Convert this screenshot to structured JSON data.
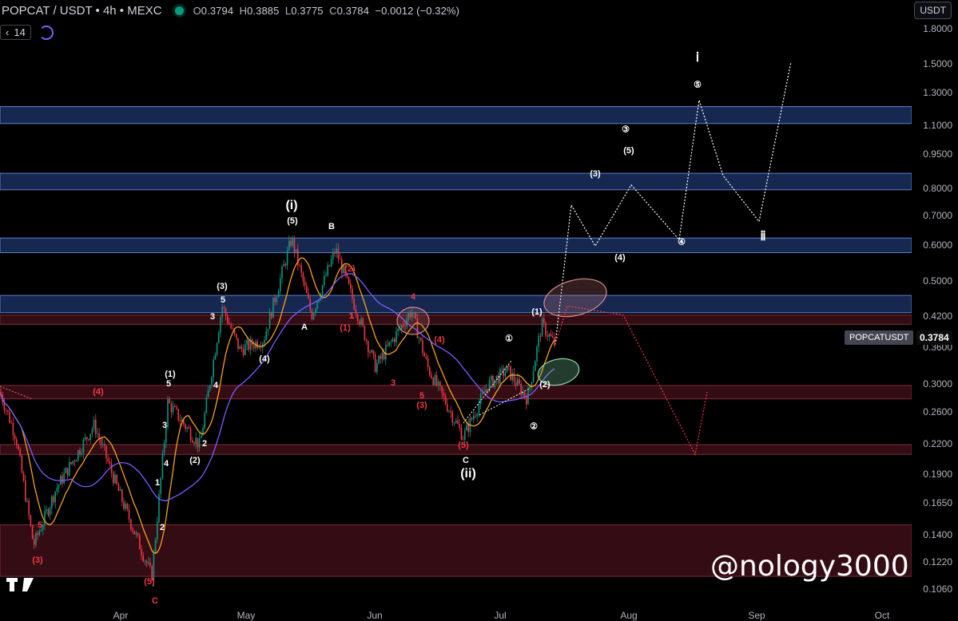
{
  "header": {
    "symbol": "POPCAT / USDT • 4h • MEXC",
    "open_label": "O",
    "open": "0.3794",
    "high_label": "H",
    "high": "0.3885",
    "low_label": "L",
    "low": "0.3775",
    "close_label": "C",
    "close": "0.3784",
    "change": "−0.0012 (−0.32%)"
  },
  "indicator": {
    "value": "14",
    "icon": "chevron-down-icon"
  },
  "currency": "USDT",
  "price_axis": [
    "1.8000",
    "1.5000",
    "1.3000",
    "1.1000",
    "0.9500",
    "0.8000",
    "0.7000",
    "0.6000",
    "0.5000",
    "0.4200",
    "0.3600",
    "0.3000",
    "0.2600",
    "0.2200",
    "0.1900",
    "0.1650",
    "0.1400",
    "0.1220",
    "0.1060"
  ],
  "time_axis": [
    "Apr",
    "May",
    "Jun",
    "Jul",
    "Aug",
    "Sep",
    "Oct"
  ],
  "last_price": {
    "symbol": "POPCATUSDT",
    "price": "0.3784"
  },
  "watermark": "@nology3000",
  "colors": {
    "up": "#089981",
    "down": "#f23645",
    "blue_zone": "#2a5caa",
    "red_zone": "#7a1f2e",
    "ema": "#f7a21b",
    "ma": "#7b5cff",
    "projection_up": "#ffffff",
    "projection_down": "#f23645"
  },
  "wave_labels": {
    "white": [
      "(i)",
      "(5)",
      "B",
      "(3)",
      "5",
      "3",
      "A",
      "(4)",
      "(1)",
      "5",
      "1",
      "4",
      "3",
      "2",
      "(2)",
      "4",
      "1",
      "2",
      "①",
      "(1)",
      "(2)",
      "②",
      "(3)",
      "③",
      "(5)",
      "(4)",
      "④",
      "ⅰ",
      "⑤",
      "ⅱ",
      "C",
      "(ii)"
    ],
    "red": [
      "(4)",
      "5",
      "(3)",
      "(5)",
      "C",
      "(2)",
      "1",
      "(1)",
      "4",
      "(4)",
      "3",
      "5",
      "(3)",
      "(5)"
    ]
  },
  "chart_data": {
    "type": "candlestick",
    "symbol": "POPCAT/USDT",
    "interval": "4h",
    "price_path": [
      [
        0,
        0.3
      ],
      [
        20,
        0.24
      ],
      [
        42,
        0.14
      ],
      [
        70,
        0.185
      ],
      [
        118,
        0.255
      ],
      [
        150,
        0.18
      ],
      [
        190,
        0.12
      ],
      [
        210,
        0.285
      ],
      [
        250,
        0.23
      ],
      [
        278,
        0.46
      ],
      [
        300,
        0.37
      ],
      [
        330,
        0.39
      ],
      [
        365,
        0.645
      ],
      [
        390,
        0.44
      ],
      [
        420,
        0.61
      ],
      [
        450,
        0.43
      ],
      [
        470,
        0.34
      ],
      [
        515,
        0.45
      ],
      [
        535,
        0.34
      ],
      [
        580,
        0.24
      ],
      [
        610,
        0.31
      ],
      [
        635,
        0.335
      ],
      [
        660,
        0.29
      ],
      [
        678,
        0.42
      ],
      [
        695,
        0.3784
      ]
    ],
    "projection_bull": [
      [
        695,
        0.38
      ],
      [
        715,
        0.76
      ],
      [
        745,
        0.62
      ],
      [
        790,
        0.84
      ],
      [
        850,
        0.64
      ],
      [
        875,
        1.28
      ],
      [
        905,
        0.88
      ],
      [
        950,
        0.7
      ],
      [
        990,
        1.55
      ]
    ],
    "projection_bear": [
      [
        695,
        0.38
      ],
      [
        710,
        0.46
      ],
      [
        780,
        0.44
      ],
      [
        870,
        0.22
      ],
      [
        885,
        0.3
      ]
    ],
    "blue_zones": [
      [
        1.14,
        1.24
      ],
      [
        0.82,
        0.89
      ],
      [
        0.6,
        0.645
      ],
      [
        0.445,
        0.485
      ]
    ],
    "red_zones": [
      [
        0.42,
        0.44
      ],
      [
        0.29,
        0.31
      ],
      [
        0.22,
        0.231
      ],
      [
        0.12,
        0.155
      ]
    ],
    "yscale": "log",
    "ylim": [
      0.102,
      1.9
    ]
  }
}
